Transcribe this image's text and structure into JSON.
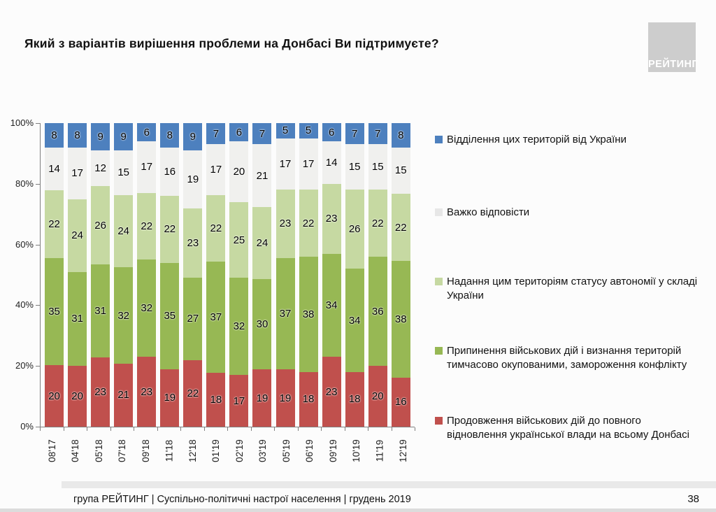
{
  "slide": {
    "title": "Який з варіантів вирішення проблеми на Донбасі Ви підтримуєте?",
    "logo_text": "РЕЙТИНГ",
    "footer": "група РЕЙТИНГ | Суспільно-політичні настрої населення  | грудень 2019",
    "page_number": "38"
  },
  "chart_data": {
    "type": "bar",
    "stacked": true,
    "title": "Який з варіантів вирішення проблеми на Донбасі Ви підтримуєте?",
    "xlabel": "",
    "ylabel": "",
    "ylim": [
      0,
      100
    ],
    "grid": false,
    "legend_position": "right",
    "y_ticks": [
      "0%",
      "20%",
      "40%",
      "60%",
      "80%",
      "100%"
    ],
    "categories": [
      "08'17",
      "04'18",
      "05'18",
      "07'18",
      "09'18",
      "11'18",
      "12'18",
      "01'19",
      "02'19",
      "03'19",
      "05'19",
      "06'19",
      "09'19",
      "10'19",
      "11'19",
      "12'19"
    ],
    "series": [
      {
        "name": "Продовження військових дій до повного відновлення української влади на всьому Донбасі",
        "color": "#C0504D",
        "values": [
          20,
          20,
          23,
          21,
          23,
          19,
          22,
          18,
          17,
          19,
          19,
          18,
          23,
          18,
          20,
          16
        ]
      },
      {
        "name": "Припинення військових дій і визнання територій тимчасово окупованими, замороження конфлікту",
        "color": "#97B854",
        "values": [
          35,
          31,
          31,
          32,
          32,
          35,
          27,
          37,
          32,
          30,
          37,
          38,
          34,
          34,
          36,
          38
        ]
      },
      {
        "name": "Надання цим територіям статусу автономії у складі України",
        "color": "#C6D9A2",
        "values": [
          22,
          24,
          26,
          24,
          22,
          22,
          23,
          22,
          25,
          24,
          23,
          22,
          23,
          26,
          22,
          22
        ]
      },
      {
        "name": "Важко відповісти",
        "color": "#F0F0EE",
        "values": [
          14,
          17,
          12,
          15,
          17,
          16,
          19,
          17,
          20,
          21,
          17,
          17,
          14,
          15,
          15,
          15
        ]
      },
      {
        "name": "Відділення цих територій від України",
        "color": "#4D80BE",
        "values": [
          8,
          8,
          9,
          9,
          6,
          8,
          9,
          7,
          6,
          7,
          5,
          5,
          6,
          7,
          7,
          8
        ]
      }
    ],
    "legend": [
      {
        "color": "#4D80BE",
        "lines": [
          "Відділення цих територій від України"
        ]
      },
      {
        "color": "#E7E7E7",
        "lines": [
          "Важко відповісти"
        ]
      },
      {
        "color": "#C6D9A2",
        "lines": [
          "Надання цим територіям статусу автономії у складі",
          "України"
        ]
      },
      {
        "color": "#97B854",
        "lines": [
          "Припинення військових дій і визнання територій",
          "тимчасово окупованими, замороження конфлікту"
        ]
      },
      {
        "color": "#C0504D",
        "lines": [
          "Продовження військових дій до повного",
          "відновлення української влади на всьому Донбасі"
        ]
      }
    ]
  }
}
